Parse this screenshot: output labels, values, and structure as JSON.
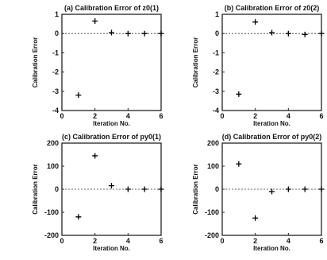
{
  "chart_data": [
    {
      "type": "scatter",
      "title": "(a) Calibration Error of z0(1)",
      "xlabel": "Iteration No.",
      "ylabel": "Calibration Error",
      "xlim": [
        0,
        6
      ],
      "ylim": [
        -4,
        1
      ],
      "xticks": [
        "0",
        "2",
        "4",
        "6"
      ],
      "yticks": [
        "1",
        "0",
        "-1",
        "-2",
        "-3",
        "-4"
      ],
      "grid": false,
      "points": [
        {
          "x": 1,
          "y": -3.2
        },
        {
          "x": 2,
          "y": 0.65
        },
        {
          "x": 3,
          "y": 0.05
        },
        {
          "x": 4,
          "y": 0.0
        },
        {
          "x": 5,
          "y": 0.0
        },
        {
          "x": 6,
          "y": 0.0
        }
      ]
    },
    {
      "type": "scatter",
      "title": "(b) Calibration Error of z0(2)",
      "xlabel": "Iteration No.",
      "ylabel": "Calibration Error",
      "xlim": [
        0,
        6
      ],
      "ylim": [
        -4,
        1
      ],
      "xticks": [
        "0",
        "2",
        "4",
        "6"
      ],
      "yticks": [
        "1",
        "0",
        "-1",
        "-2",
        "-3",
        "-4"
      ],
      "grid": false,
      "points": [
        {
          "x": 1,
          "y": -3.15
        },
        {
          "x": 2,
          "y": 0.6
        },
        {
          "x": 3,
          "y": 0.05
        },
        {
          "x": 4,
          "y": 0.0
        },
        {
          "x": 5,
          "y": -0.05
        },
        {
          "x": 6,
          "y": 0.0
        }
      ]
    },
    {
      "type": "scatter",
      "title": "(c) Calibration Error of py0(1)",
      "xlabel": "Iteration No.",
      "ylabel": "Calibration Error",
      "xlim": [
        0,
        6
      ],
      "ylim": [
        -200,
        200
      ],
      "xticks": [
        "0",
        "2",
        "4",
        "6"
      ],
      "yticks": [
        "200",
        "100",
        "0",
        "-100",
        "-200"
      ],
      "grid": false,
      "points": [
        {
          "x": 1,
          "y": -120
        },
        {
          "x": 2,
          "y": 145
        },
        {
          "x": 3,
          "y": 15
        },
        {
          "x": 4,
          "y": 0
        },
        {
          "x": 5,
          "y": 0
        },
        {
          "x": 6,
          "y": 0
        }
      ]
    },
    {
      "type": "scatter",
      "title": "(d) Calibration Error of py0(2)",
      "xlabel": "Iteration No.",
      "ylabel": "Calibration Error",
      "xlim": [
        0,
        6
      ],
      "ylim": [
        -200,
        200
      ],
      "xticks": [
        "0",
        "2",
        "4",
        "6"
      ],
      "yticks": [
        "200",
        "100",
        "0",
        "-100",
        "-200"
      ],
      "grid": false,
      "points": [
        {
          "x": 1,
          "y": 110
        },
        {
          "x": 2,
          "y": -125
        },
        {
          "x": 3,
          "y": -10
        },
        {
          "x": 4,
          "y": 0
        },
        {
          "x": 5,
          "y": 0
        },
        {
          "x": 6,
          "y": 0
        }
      ]
    }
  ]
}
